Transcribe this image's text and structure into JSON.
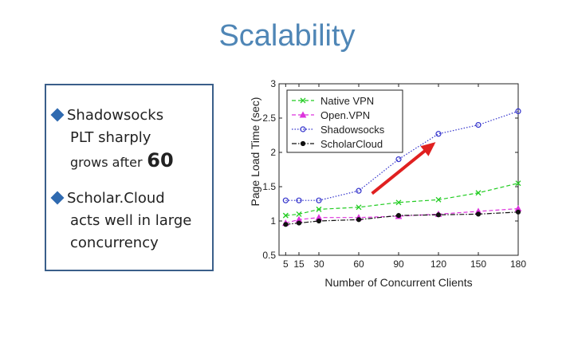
{
  "slide": {
    "title": "Scalability",
    "bullets": [
      {
        "lines": [
          "Shadowsocks",
          "PLT sharply"
        ],
        "tail_text": "grows after",
        "tail_highlight": "60"
      },
      {
        "lines": [
          "Scholar.Cloud",
          "acts well in large",
          "concurrency"
        ]
      }
    ]
  },
  "chart_data": {
    "type": "line",
    "xlabel": "Number of Concurrent Clients",
    "ylabel": "Page Load Time (sec)",
    "x": [
      5,
      15,
      30,
      60,
      90,
      120,
      150,
      180
    ],
    "x_ticks": [
      "5",
      "15",
      "30",
      "60",
      "90",
      "120",
      "150",
      "180"
    ],
    "ylim": [
      0.5,
      3
    ],
    "y_ticks": [
      "0.5",
      "1",
      "1.5",
      "2",
      "2.5",
      "3"
    ],
    "legend_position": "top-left",
    "series": [
      {
        "name": "Native VPN",
        "color": "#22cc22",
        "marker": "x",
        "dash": "dashed",
        "values": [
          1.08,
          1.1,
          1.17,
          1.2,
          1.27,
          1.31,
          1.41,
          1.55
        ]
      },
      {
        "name": "Open.VPN",
        "color": "#dd33dd",
        "marker": "triangle",
        "dash": "dashed",
        "values": [
          0.97,
          1.02,
          1.05,
          1.05,
          1.07,
          1.1,
          1.14,
          1.18
        ]
      },
      {
        "name": "Shadowsocks",
        "color": "#3333cc",
        "marker": "circle",
        "dash": "dotted",
        "values": [
          1.3,
          1.3,
          1.3,
          1.44,
          1.9,
          2.27,
          2.4,
          2.6
        ]
      },
      {
        "name": "ScholarCloud",
        "color": "#111111",
        "marker": "dot",
        "dash": "dashdot",
        "values": [
          0.95,
          0.97,
          1.0,
          1.02,
          1.08,
          1.09,
          1.1,
          1.13
        ]
      }
    ],
    "annotation": {
      "type": "arrow",
      "color": "#e02020"
    }
  }
}
